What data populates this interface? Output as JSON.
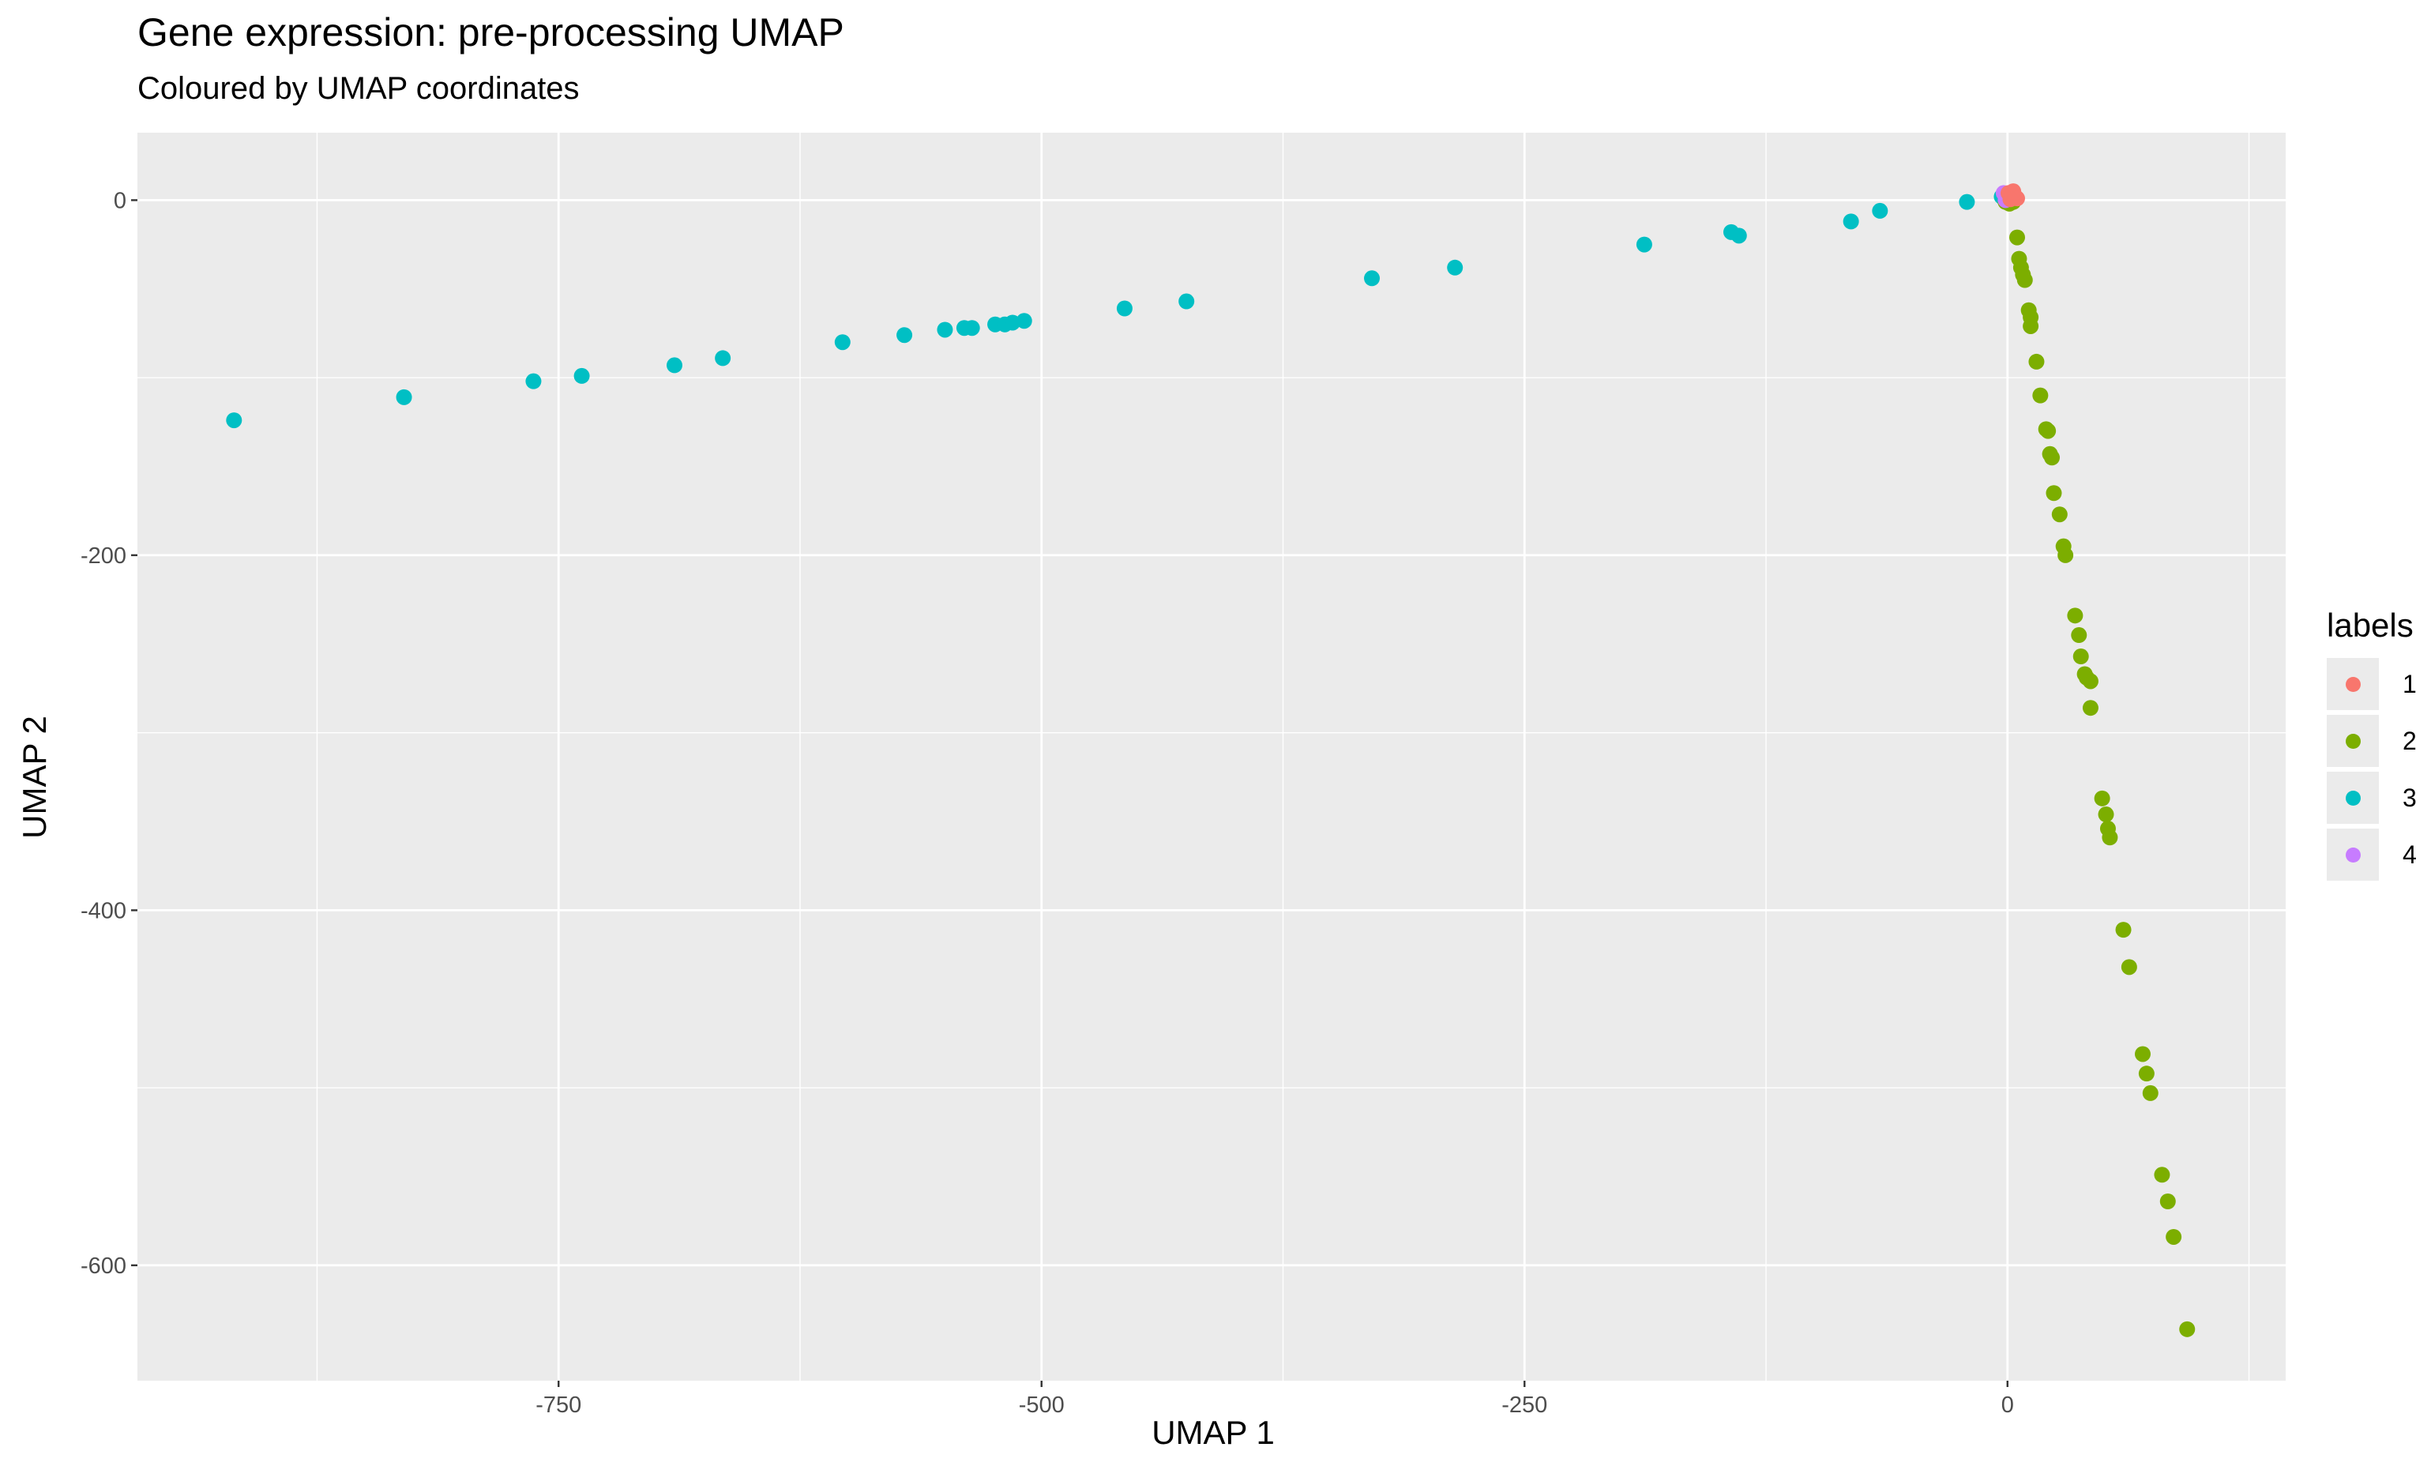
{
  "chart_data": {
    "type": "scatter",
    "title": "Gene expression: pre-processing UMAP",
    "subtitle": "Coloured by UMAP coordinates",
    "xlabel": "UMAP 1",
    "ylabel": "UMAP 2",
    "xlim": [
      -968,
      144
    ],
    "ylim": [
      -665,
      38
    ],
    "xticks": [
      -750,
      -500,
      -250,
      0
    ],
    "xtick_labels": [
      "-750",
      "-500",
      "-250",
      "0"
    ],
    "yticks": [
      0,
      -200,
      -400,
      -600
    ],
    "ytick_labels": [
      "0",
      "-200",
      "-400",
      "-600"
    ],
    "grid": true,
    "legend": {
      "title": "labels",
      "position": "right"
    },
    "series": [
      {
        "name": "1",
        "color": "#F8766D",
        "points": [
          [
            0.5,
            4
          ],
          [
            3,
            5
          ],
          [
            4,
            2
          ],
          [
            5,
            1
          ],
          [
            1.5,
            0.5
          ]
        ]
      },
      {
        "name": "2",
        "color": "#7CAE00",
        "points": [
          [
            -1,
            -1
          ],
          [
            1,
            -2
          ],
          [
            3,
            -1
          ],
          [
            5,
            -21
          ],
          [
            6,
            -33
          ],
          [
            7,
            -38
          ],
          [
            8,
            -42
          ],
          [
            9,
            -45
          ],
          [
            11,
            -62
          ],
          [
            12,
            -66
          ],
          [
            12,
            -71
          ],
          [
            15,
            -91
          ],
          [
            17,
            -110
          ],
          [
            20,
            -129
          ],
          [
            21,
            -130
          ],
          [
            22,
            -143
          ],
          [
            23,
            -145
          ],
          [
            24,
            -165
          ],
          [
            27,
            -177
          ],
          [
            29,
            -195
          ],
          [
            30,
            -200
          ],
          [
            35,
            -234
          ],
          [
            37,
            -245
          ],
          [
            38,
            -257
          ],
          [
            40,
            -267
          ],
          [
            41,
            -269
          ],
          [
            43,
            -271
          ],
          [
            43,
            -286
          ],
          [
            49,
            -337
          ],
          [
            51,
            -346
          ],
          [
            52,
            -354
          ],
          [
            53,
            -359
          ],
          [
            60,
            -411
          ],
          [
            63,
            -432
          ],
          [
            70,
            -481
          ],
          [
            72,
            -492
          ],
          [
            74,
            -503
          ],
          [
            80,
            -549
          ],
          [
            83,
            -564
          ],
          [
            86,
            -584
          ],
          [
            93,
            -636
          ]
        ]
      },
      {
        "name": "3",
        "color": "#00BFC4",
        "points": [
          [
            -918,
            -124
          ],
          [
            -830,
            -111
          ],
          [
            -763,
            -102
          ],
          [
            -738,
            -99
          ],
          [
            -690,
            -93
          ],
          [
            -665,
            -89
          ],
          [
            -603,
            -80
          ],
          [
            -571,
            -76
          ],
          [
            -550,
            -73
          ],
          [
            -540,
            -72
          ],
          [
            -536,
            -72
          ],
          [
            -524,
            -70
          ],
          [
            -519,
            -70
          ],
          [
            -515,
            -69
          ],
          [
            -509,
            -68
          ],
          [
            -457,
            -61
          ],
          [
            -425,
            -57
          ],
          [
            -329,
            -44
          ],
          [
            -286,
            -38
          ],
          [
            -188,
            -25
          ],
          [
            -143,
            -18
          ],
          [
            -139,
            -20
          ],
          [
            -81,
            -12
          ],
          [
            -66,
            -6
          ],
          [
            -21,
            -1
          ],
          [
            -3,
            2
          ],
          [
            -2,
            1
          ]
        ]
      },
      {
        "name": "4",
        "color": "#C77CFF",
        "points": [
          [
            -2,
            4
          ],
          [
            -1,
            2
          ],
          [
            0,
            3
          ],
          [
            1,
            1
          ],
          [
            -1,
            0
          ]
        ]
      }
    ]
  }
}
